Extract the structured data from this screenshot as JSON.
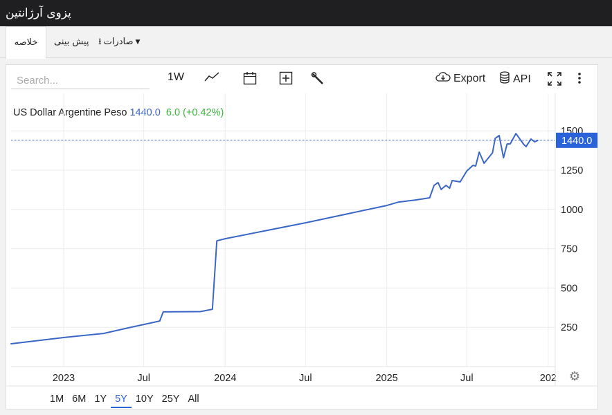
{
  "header": {
    "title": "پزوی آرژانتین"
  },
  "tabs": [
    {
      "label": "خلاصه",
      "active": true
    },
    {
      "label": "پیش بینی"
    },
    {
      "label": "صادرات",
      "icon": "download-icon"
    }
  ],
  "toolbar": {
    "search_placeholder": "Search...",
    "interval": "1W",
    "export": "Export",
    "api": "API"
  },
  "legend": {
    "name": "US Dollar Argentine Peso",
    "value": "1440.0",
    "change": "6.0 (+0.42%)"
  },
  "colors": {
    "line": "#3a66c6",
    "label_bg": "#2962d9",
    "change": "#3cb33c"
  },
  "chart_data": {
    "type": "line",
    "y_ticks": [
      250,
      500,
      750,
      1000,
      1250,
      1500
    ],
    "ylim": [
      0,
      1550
    ],
    "x_ticks": [
      {
        "label": "2023",
        "date": "2023-01-01"
      },
      {
        "label": "Jul",
        "date": "2023-07-01"
      },
      {
        "label": "2024",
        "date": "2024-01-01"
      },
      {
        "label": "Jul",
        "date": "2024-07-01"
      },
      {
        "label": "2025",
        "date": "2025-01-01"
      },
      {
        "label": "Jul",
        "date": "2025-07-01"
      },
      {
        "label": "202",
        "date": "2026-01-01"
      }
    ],
    "last_value_label": "1440.0",
    "last_value": 1440,
    "series": [
      {
        "points": [
          [
            "2022-09-03",
            145
          ],
          [
            "2023-01-01",
            185
          ],
          [
            "2023-04-01",
            211
          ],
          [
            "2023-05-26",
            246
          ],
          [
            "2023-08-06",
            290
          ],
          [
            "2023-08-14",
            348
          ],
          [
            "2023-11-06",
            350
          ],
          [
            "2023-12-03",
            365
          ],
          [
            "2023-12-13",
            800
          ],
          [
            "2024-01-01",
            814
          ],
          [
            "2024-07-01",
            915
          ],
          [
            "2025-01-01",
            1025
          ],
          [
            "2025-01-28",
            1047
          ],
          [
            "2025-03-06",
            1060
          ],
          [
            "2025-04-08",
            1074
          ],
          [
            "2025-04-18",
            1153
          ],
          [
            "2025-04-27",
            1171
          ],
          [
            "2025-05-04",
            1127
          ],
          [
            "2025-05-15",
            1153
          ],
          [
            "2025-05-23",
            1135
          ],
          [
            "2025-05-29",
            1184
          ],
          [
            "2025-06-16",
            1175
          ],
          [
            "2025-07-01",
            1245
          ],
          [
            "2025-07-15",
            1281
          ],
          [
            "2025-07-21",
            1276
          ],
          [
            "2025-07-29",
            1365
          ],
          [
            "2025-08-09",
            1294
          ],
          [
            "2025-08-28",
            1360
          ],
          [
            "2025-09-03",
            1452
          ],
          [
            "2025-09-12",
            1470
          ],
          [
            "2025-09-22",
            1329
          ],
          [
            "2025-09-30",
            1417
          ],
          [
            "2025-10-07",
            1417
          ],
          [
            "2025-10-20",
            1483
          ],
          [
            "2025-11-07",
            1413
          ],
          [
            "2025-11-12",
            1400
          ],
          [
            "2025-11-23",
            1448
          ],
          [
            "2025-12-01",
            1430
          ],
          [
            "2025-12-09",
            1440
          ]
        ]
      }
    ],
    "grid": true
  },
  "ranges": [
    {
      "label": "1M"
    },
    {
      "label": "6M"
    },
    {
      "label": "1Y"
    },
    {
      "label": "5Y",
      "selected": true
    },
    {
      "label": "10Y"
    },
    {
      "label": "25Y"
    },
    {
      "label": "All"
    }
  ]
}
